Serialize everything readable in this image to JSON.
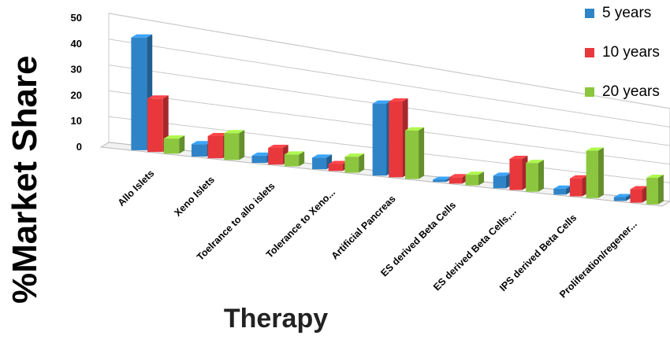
{
  "chart_data": {
    "type": "bar",
    "title": "",
    "xlabel": "Therapy",
    "ylabel": "%Market Share",
    "ylim": [
      0,
      50
    ],
    "yticks": [
      "50",
      "40",
      "30",
      "20",
      "10",
      "0"
    ],
    "categories": [
      "Allo Islets",
      "Xeno Islets",
      "Toelrance to allo islets",
      "Tolerance to Xeno...",
      "Artificial Pancreas",
      "ES derived Beta Cells",
      "ES derived Beta Cells,...",
      "IPS derived Beta Cells",
      "Proliferation/regener..."
    ],
    "series": [
      {
        "name": "5 years",
        "color": "#2f84c8",
        "values": [
          44,
          5,
          3,
          5,
          32,
          1,
          6,
          3,
          2
        ]
      },
      {
        "name": "10 years",
        "color": "#e8383c",
        "values": [
          21,
          9,
          7,
          3,
          34,
          3,
          15,
          9,
          7
        ]
      },
      {
        "name": "20 years",
        "color": "#8cc63e",
        "values": [
          6,
          11,
          5,
          7,
          22,
          5,
          14,
          24,
          14
        ]
      }
    ],
    "legend_position": "top-right",
    "grid": true,
    "style": "3d-perspective"
  }
}
